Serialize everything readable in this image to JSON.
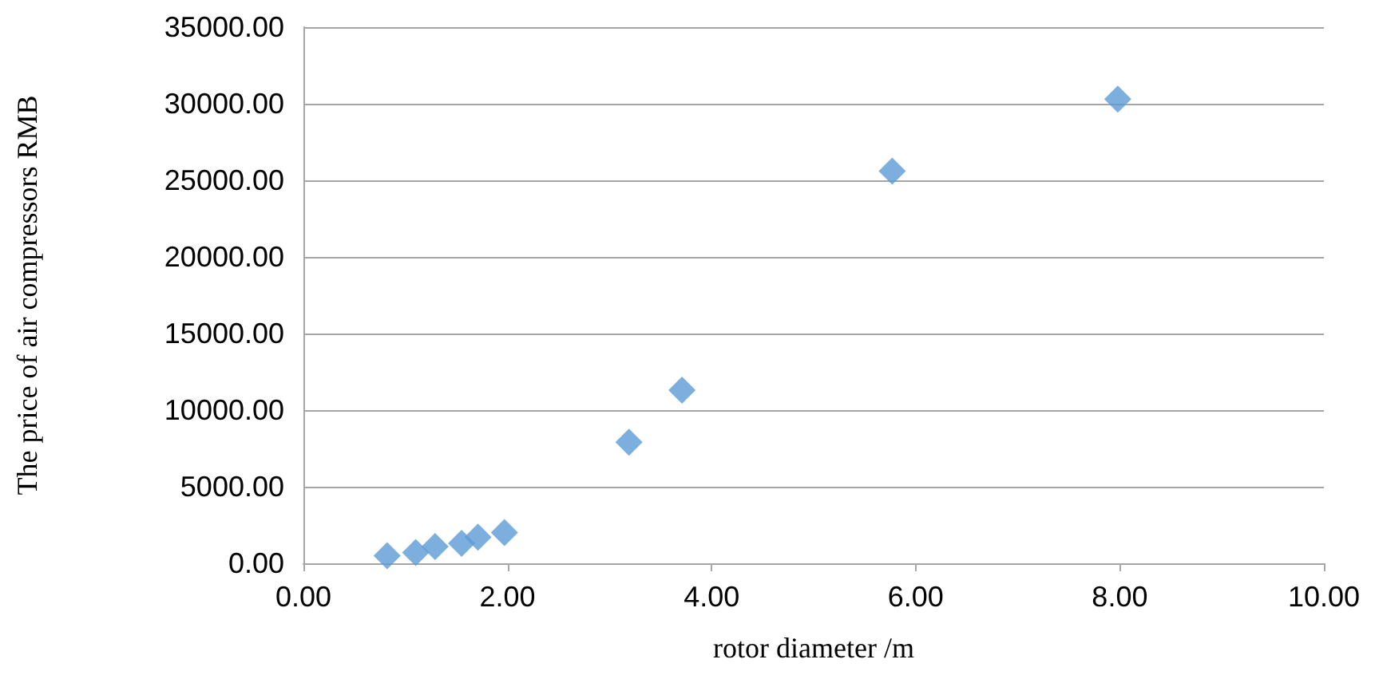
{
  "chart_data": {
    "type": "scatter",
    "xlabel": "rotor diameter /m",
    "ylabel": "The price of air compressors RMB",
    "x": [
      0.82,
      1.1,
      1.29,
      1.55,
      1.71,
      1.97,
      3.19,
      3.71,
      5.77,
      7.98
    ],
    "series": [
      {
        "color": "#5b9bd5",
        "values": [
          500,
          700,
          1100,
          1300,
          1700,
          2000,
          7900,
          11300,
          25600,
          30300
        ]
      }
    ],
    "xlim": [
      0,
      10
    ],
    "xticks": [
      {
        "value": 0,
        "label": "0.00"
      },
      {
        "value": 2,
        "label": "2.00"
      },
      {
        "value": 4,
        "label": "4.00"
      },
      {
        "value": 6,
        "label": "6.00"
      },
      {
        "value": 8,
        "label": "8.00"
      },
      {
        "value": 10,
        "label": "10.00"
      }
    ],
    "ylim": [
      0,
      35000
    ],
    "yticks": [
      {
        "value": 0,
        "label": "0.00"
      },
      {
        "value": 5000,
        "label": "5000.00"
      },
      {
        "value": 10000,
        "label": "10000.00"
      },
      {
        "value": 15000,
        "label": "15000.00"
      },
      {
        "value": 20000,
        "label": "20000.00"
      },
      {
        "value": 25000,
        "label": "25000.00"
      },
      {
        "value": 30000,
        "label": "30000.00"
      },
      {
        "value": 35000,
        "label": "35000.00"
      }
    ],
    "grid": "y",
    "marker": "diamond"
  }
}
